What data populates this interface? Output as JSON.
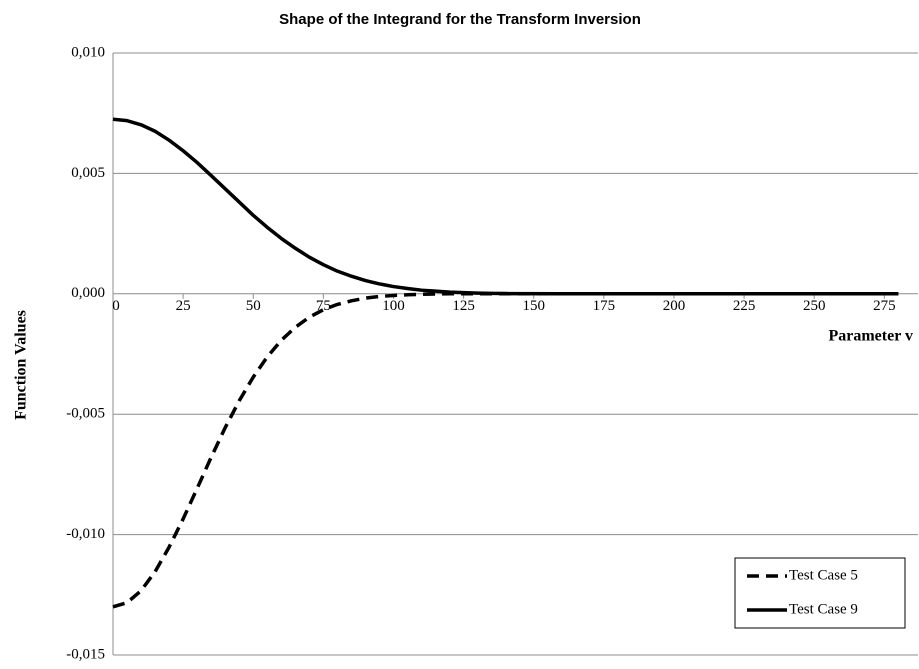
{
  "chart_data": {
    "type": "line",
    "title": "Shape of the Integrand for the Transform Inversion",
    "x_label": "Parameter v",
    "y_label": "Function Values",
    "x": [
      0,
      5,
      10,
      15,
      20,
      25,
      30,
      35,
      40,
      45,
      50,
      55,
      60,
      65,
      70,
      75,
      80,
      85,
      90,
      95,
      100,
      105,
      110,
      115,
      120,
      125,
      130,
      135,
      140,
      160,
      180,
      200,
      220,
      240,
      260,
      280
    ],
    "series": [
      {
        "name": "Test Case 5",
        "color": "#000000",
        "dash": true,
        "values": [
          -0.013,
          -0.01283,
          -0.01233,
          -0.01154,
          -0.01052,
          -0.00935,
          -0.00808,
          -0.00679,
          -0.00556,
          -0.00444,
          -0.00346,
          -0.00262,
          -0.00193,
          -0.00139,
          -0.00097,
          -0.00066,
          -0.00044,
          -0.00029,
          -0.00018,
          -0.00011,
          -7e-05,
          -4e-05,
          -2e-05,
          -1e-05,
          0,
          0,
          0,
          0,
          0,
          0,
          0,
          0,
          0,
          0,
          0,
          0
        ]
      },
      {
        "name": "Test Case 9",
        "color": "#000000",
        "dash": false,
        "values": [
          0.00725,
          0.00719,
          0.00702,
          0.00675,
          0.00638,
          0.00594,
          0.00545,
          0.00491,
          0.00436,
          0.00381,
          0.00326,
          0.00276,
          0.0023,
          0.00189,
          0.00152,
          0.00121,
          0.00094,
          0.00073,
          0.00055,
          0.00041,
          0.0003,
          0.00022,
          0.00015,
          0.00011,
          7e-05,
          5e-05,
          3e-05,
          2e-05,
          1e-05,
          0,
          0,
          0,
          0,
          0,
          0,
          0
        ]
      }
    ],
    "xlim": [
      0,
      287
    ],
    "xticks": [
      0,
      25,
      50,
      75,
      100,
      125,
      150,
      175,
      200,
      225,
      250,
      275
    ],
    "ylim": [
      -0.015,
      0.01
    ],
    "yticks": [
      {
        "value": -0.015,
        "label": "-0,015"
      },
      {
        "value": -0.01,
        "label": "-0,010"
      },
      {
        "value": -0.005,
        "label": "-0,005"
      },
      {
        "value": 0,
        "label": "0,000"
      },
      {
        "value": 0.005,
        "label": "0,005"
      },
      {
        "value": 0.01,
        "label": "0,010"
      }
    ],
    "grid": true,
    "legend": "lower right"
  }
}
